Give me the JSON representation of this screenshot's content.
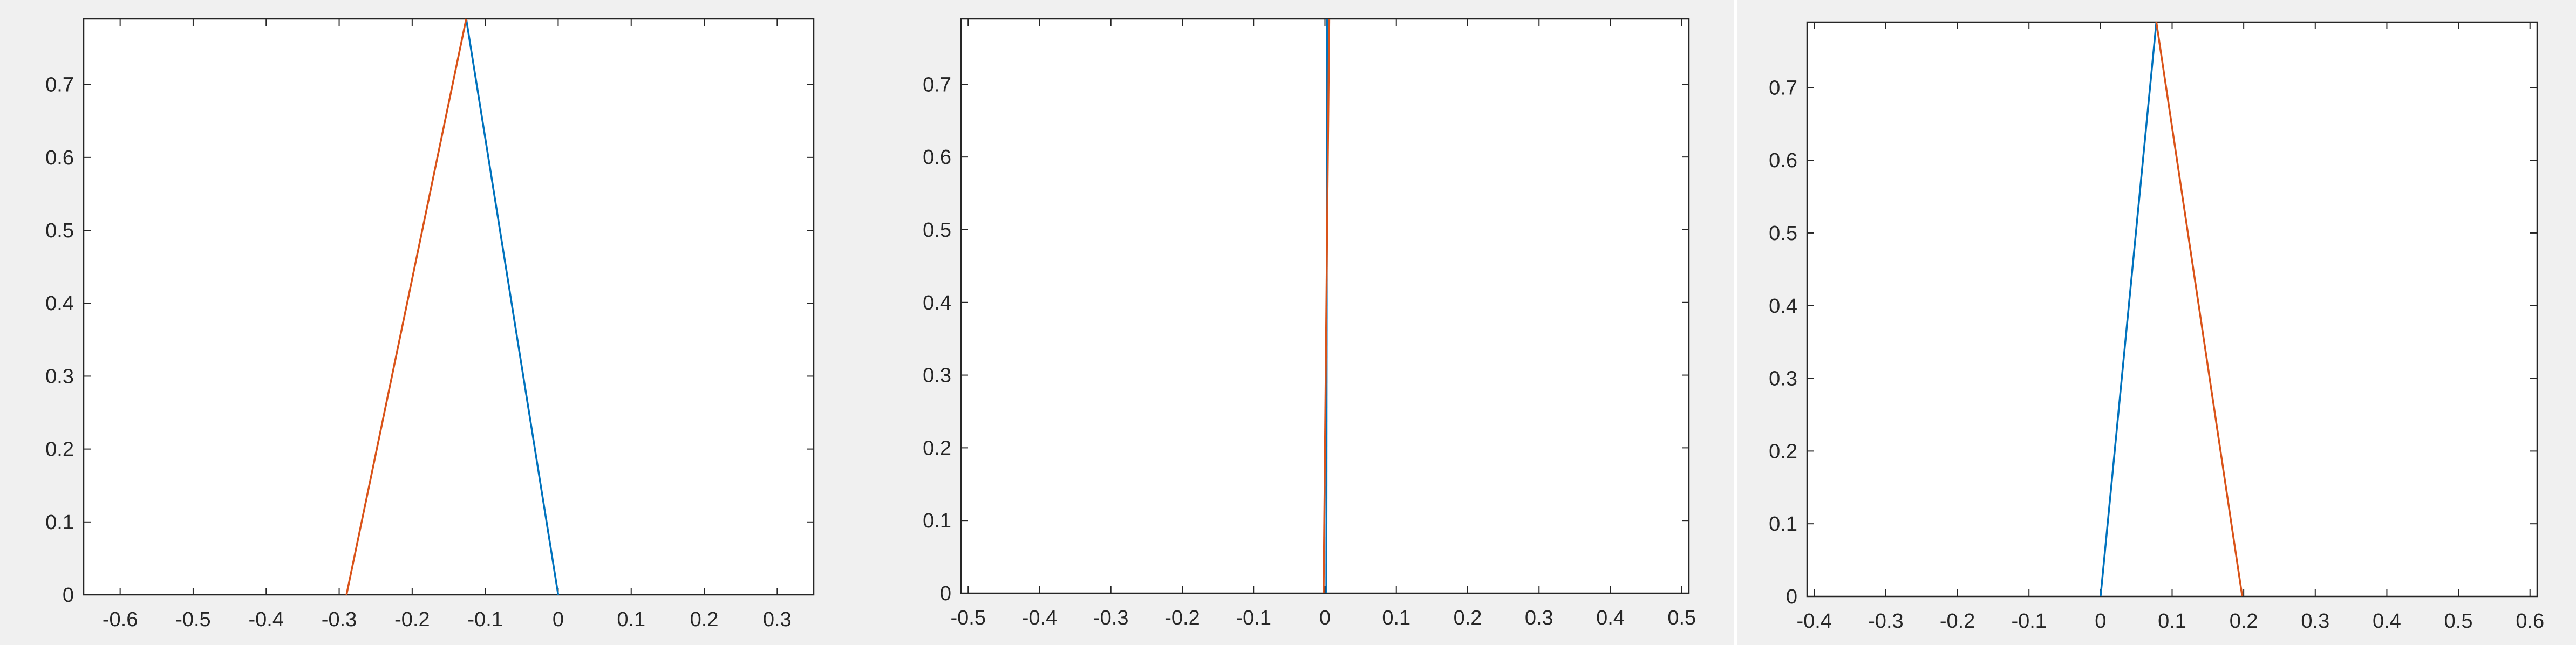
{
  "chart_data": [
    {
      "type": "line",
      "title": "",
      "xlabel": "",
      "ylabel": "",
      "xlim": [
        -0.65,
        0.35
      ],
      "ylim": [
        0,
        0.79
      ],
      "xticks": [
        "-0.6",
        "-0.5",
        "-0.4",
        "-0.3",
        "-0.2",
        "-0.1",
        "0",
        "0.1",
        "0.2",
        "0.3"
      ],
      "yticks": [
        "0",
        "0.1",
        "0.2",
        "0.3",
        "0.4",
        "0.5",
        "0.6",
        "0.7"
      ],
      "grid": false,
      "series": [
        {
          "color": "#0072bd",
          "x": [
            0,
            -0.126
          ],
          "y": [
            0,
            0.79
          ]
        },
        {
          "color": "#d95319",
          "x": [
            -0.126,
            -0.29
          ],
          "y": [
            0.79,
            0
          ]
        }
      ]
    },
    {
      "type": "line",
      "title": "",
      "xlabel": "",
      "ylabel": "",
      "xlim": [
        -0.51,
        0.51
      ],
      "ylim": [
        0,
        0.79
      ],
      "xticks": [
        "-0.5",
        "-0.4",
        "-0.3",
        "-0.2",
        "-0.1",
        "0",
        "0.1",
        "0.2",
        "0.3",
        "0.4",
        "0.5"
      ],
      "yticks": [
        "0",
        "0.1",
        "0.2",
        "0.3",
        "0.4",
        "0.5",
        "0.6",
        "0.7"
      ],
      "grid": false,
      "series": [
        {
          "color": "#0072bd",
          "x": [
            0.002,
            0.003
          ],
          "y": [
            0,
            0.79
          ]
        },
        {
          "color": "#d95319",
          "x": [
            0.006,
            -0.002
          ],
          "y": [
            0.79,
            0
          ]
        }
      ]
    },
    {
      "type": "line",
      "title": "",
      "xlabel": "",
      "ylabel": "",
      "xlim": [
        -0.41,
        0.61
      ],
      "ylim": [
        0,
        0.79
      ],
      "xticks": [
        "-0.4",
        "-0.3",
        "-0.2",
        "-0.1",
        "0",
        "0.1",
        "0.2",
        "0.3",
        "0.4",
        "0.5",
        "0.6"
      ],
      "yticks": [
        "0",
        "0.1",
        "0.2",
        "0.3",
        "0.4",
        "0.5",
        "0.6",
        "0.7"
      ],
      "grid": false,
      "series": [
        {
          "color": "#0072bd",
          "x": [
            0,
            0.078
          ],
          "y": [
            0,
            0.79
          ]
        },
        {
          "color": "#d95319",
          "x": [
            0.078,
            0.198
          ],
          "y": [
            0.79,
            0
          ]
        }
      ]
    }
  ]
}
